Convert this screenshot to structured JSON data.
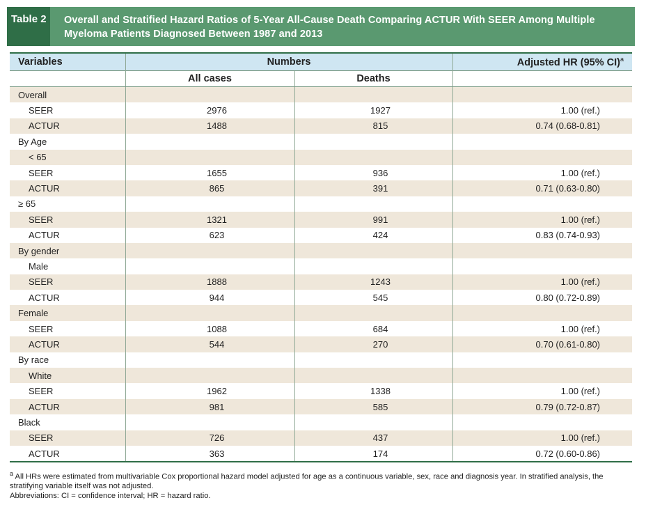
{
  "title": {
    "label": "Table 2",
    "text": "Overall and Stratified Hazard Ratios of 5-Year All-Cause Death Comparing ACTUR With SEER Among Multiple Myeloma Patients Diagnosed Between 1987 and 2013"
  },
  "header": {
    "variables": "Variables",
    "numbers": "Numbers",
    "adjusted_hr": "Adjusted HR (95% CI)",
    "adjusted_hr_sup": "a",
    "all_cases": "All cases",
    "deaths": "Deaths"
  },
  "rows": [
    {
      "label": "Overall",
      "indent": false,
      "all": "",
      "deaths": "",
      "hr": ""
    },
    {
      "label": "SEER",
      "indent": true,
      "all": "2976",
      "deaths": "1927",
      "hr": "1.00 (ref.)"
    },
    {
      "label": "ACTUR",
      "indent": true,
      "all": "1488",
      "deaths": "815",
      "hr": "0.74 (0.68-0.81)"
    },
    {
      "label": "By Age",
      "indent": false,
      "all": "",
      "deaths": "",
      "hr": ""
    },
    {
      "label": "< 65",
      "indent": true,
      "all": "",
      "deaths": "",
      "hr": ""
    },
    {
      "label": "SEER",
      "indent": true,
      "all": "1655",
      "deaths": "936",
      "hr": "1.00 (ref.)"
    },
    {
      "label": "ACTUR",
      "indent": true,
      "all": "865",
      "deaths": "391",
      "hr": "0.71 (0.63-0.80)"
    },
    {
      "label": "≥ 65",
      "indent": false,
      "all": "",
      "deaths": "",
      "hr": ""
    },
    {
      "label": "SEER",
      "indent": true,
      "all": "1321",
      "deaths": "991",
      "hr": "1.00 (ref.)"
    },
    {
      "label": "ACTUR",
      "indent": true,
      "all": "623",
      "deaths": "424",
      "hr": "0.83 (0.74-0.93)"
    },
    {
      "label": "By gender",
      "indent": false,
      "all": "",
      "deaths": "",
      "hr": ""
    },
    {
      "label": "Male",
      "indent": true,
      "all": "",
      "deaths": "",
      "hr": ""
    },
    {
      "label": "SEER",
      "indent": true,
      "all": "1888",
      "deaths": "1243",
      "hr": "1.00 (ref.)"
    },
    {
      "label": "ACTUR",
      "indent": true,
      "all": "944",
      "deaths": "545",
      "hr": "0.80 (0.72-0.89)"
    },
    {
      "label": "Female",
      "indent": false,
      "all": "",
      "deaths": "",
      "hr": ""
    },
    {
      "label": "SEER",
      "indent": true,
      "all": "1088",
      "deaths": "684",
      "hr": "1.00 (ref.)"
    },
    {
      "label": "ACTUR",
      "indent": true,
      "all": "544",
      "deaths": "270",
      "hr": "0.70 (0.61-0.80)"
    },
    {
      "label": "By race",
      "indent": false,
      "all": "",
      "deaths": "",
      "hr": ""
    },
    {
      "label": "White",
      "indent": true,
      "all": "",
      "deaths": "",
      "hr": ""
    },
    {
      "label": "SEER",
      "indent": true,
      "all": "1962",
      "deaths": "1338",
      "hr": "1.00 (ref.)"
    },
    {
      "label": "ACTUR",
      "indent": true,
      "all": "981",
      "deaths": "585",
      "hr": "0.79 (0.72-0.87)"
    },
    {
      "label": "Black",
      "indent": false,
      "all": "",
      "deaths": "",
      "hr": ""
    },
    {
      "label": "SEER",
      "indent": true,
      "all": "726",
      "deaths": "437",
      "hr": "1.00 (ref.)"
    },
    {
      "label": "ACTUR",
      "indent": true,
      "all": "363",
      "deaths": "174",
      "hr": "0.72 (0.60-0.86)"
    }
  ],
  "footnotes": {
    "a_marker": "a",
    "a_text": "All HRs were estimated from multivariable Cox proportional hazard model adjusted for age as a continuous variable, sex, race and diagnosis year. In stratified analysis, the stratifying variable itself was not adjusted.",
    "abbreviations": "Abbreviations: CI = confidence interval; HR = hazard ratio."
  }
}
